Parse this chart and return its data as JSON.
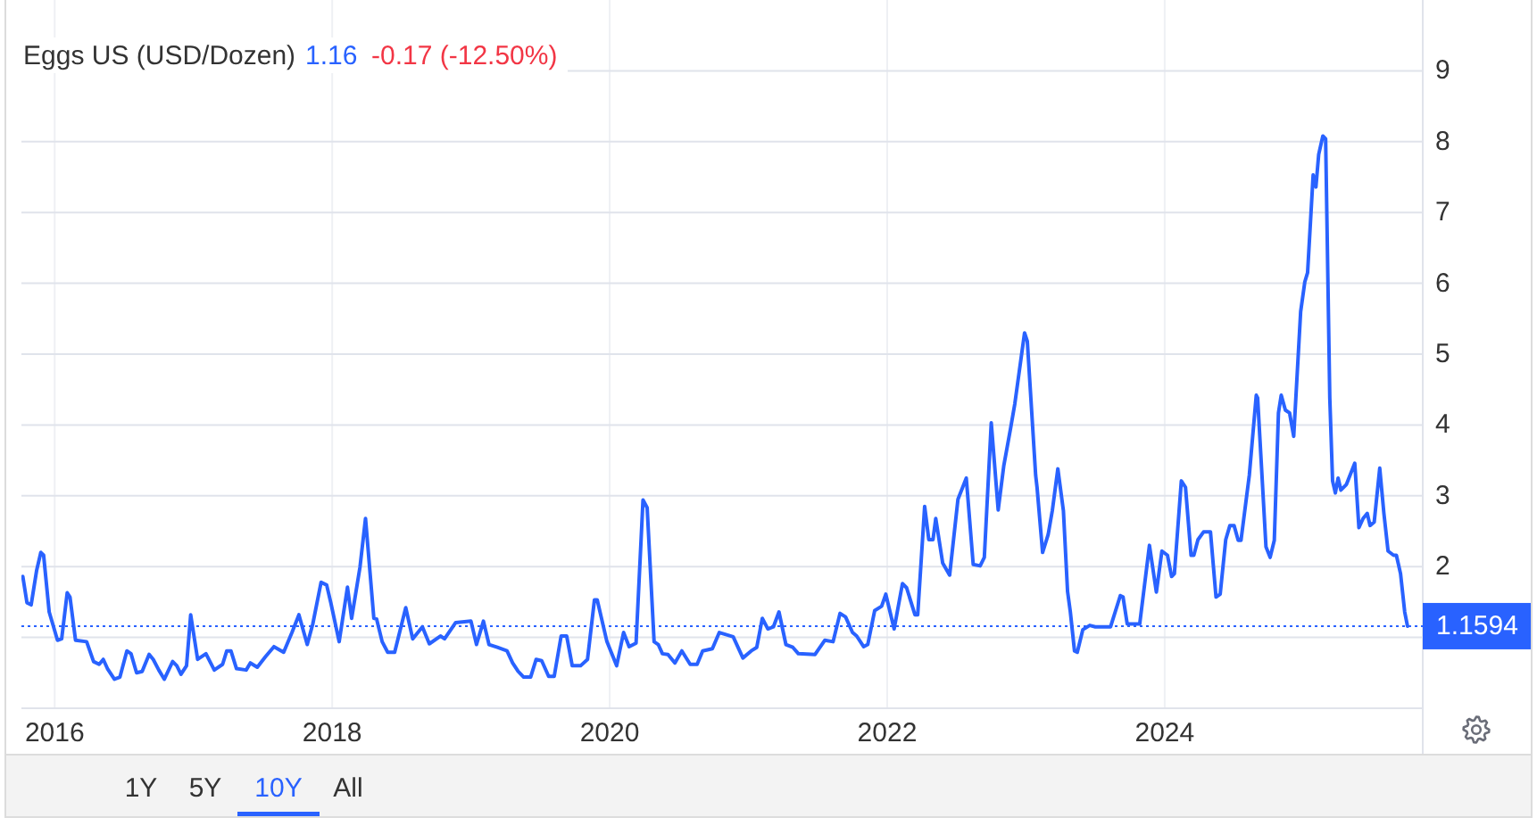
{
  "chart_data": {
    "type": "line",
    "title": "Eggs US (USD/Dozen)",
    "annotations": [
      "1.16",
      "-0.17 (-12.50%)",
      "1Y",
      "5Y",
      "10Y",
      "All"
    ],
    "x": [
      2015.77,
      2015.8,
      2015.83,
      2015.87,
      2015.9,
      2015.92,
      2015.96,
      2016.02,
      2016.05,
      2016.09,
      2016.11,
      2016.15,
      2016.23,
      2016.28,
      2016.32,
      2016.35,
      2016.38,
      2016.43,
      2016.47,
      2016.52,
      2016.55,
      2016.59,
      2016.63,
      2016.68,
      2016.71,
      2016.75,
      2016.79,
      2016.85,
      2016.88,
      2016.91,
      2016.95,
      2016.98,
      2017.03,
      2017.09,
      2017.15,
      2017.21,
      2017.24,
      2017.27,
      2017.31,
      2017.38,
      2017.41,
      2017.46,
      2017.52,
      2017.58,
      2017.65,
      2017.71,
      2017.76,
      2017.82,
      2017.86,
      2017.92,
      2017.96,
      2017.99,
      2018.05,
      2018.11,
      2018.14,
      2018.2,
      2018.24,
      2018.3,
      2018.32,
      2018.36,
      2018.4,
      2018.45,
      2018.53,
      2018.58,
      2018.65,
      2018.7,
      2018.78,
      2018.81,
      2018.89,
      2019.0,
      2019.04,
      2019.09,
      2019.13,
      2019.19,
      2019.26,
      2019.3,
      2019.34,
      2019.38,
      2019.43,
      2019.47,
      2019.51,
      2019.56,
      2019.6,
      2019.65,
      2019.69,
      2019.73,
      2019.79,
      2019.84,
      2019.89,
      2019.91,
      2019.98,
      2020.05,
      2020.1,
      2020.14,
      2020.19,
      2020.24,
      2020.27,
      2020.32,
      2020.35,
      2020.38,
      2020.42,
      2020.47,
      2020.52,
      2020.58,
      2020.63,
      2020.67,
      2020.74,
      2020.79,
      2020.89,
      2020.96,
      2021.02,
      2021.06,
      2021.1,
      2021.14,
      2021.18,
      2021.22,
      2021.27,
      2021.32,
      2021.36,
      2021.48,
      2021.55,
      2021.61,
      2021.66,
      2021.7,
      2021.75,
      2021.78,
      2021.83,
      2021.86,
      2021.91,
      2021.96,
      2021.99,
      2022.05,
      2022.11,
      2022.14,
      2022.2,
      2022.22,
      2022.27,
      2022.3,
      2022.33,
      2022.35,
      2022.4,
      2022.45,
      2022.51,
      2022.57,
      2022.62,
      2022.67,
      2022.7,
      2022.75,
      2022.8,
      2022.84,
      2022.89,
      2022.92,
      2022.99,
      2023.01,
      2023.07,
      2023.08,
      2023.12,
      2023.16,
      2023.19,
      2023.23,
      2023.27,
      2023.3,
      2023.32,
      2023.35,
      2023.37,
      2023.41,
      2023.46,
      2023.5,
      2023.61,
      2023.68,
      2023.7,
      2023.73,
      2023.82,
      2023.89,
      2023.94,
      2023.98,
      2024.02,
      2024.05,
      2024.07,
      2024.12,
      2024.15,
      2024.19,
      2024.21,
      2024.24,
      2024.28,
      2024.33,
      2024.37,
      2024.4,
      2024.44,
      2024.47,
      2024.5,
      2024.53,
      2024.55,
      2024.61,
      2024.66,
      2024.67,
      2024.73,
      2024.76,
      2024.79,
      2024.82,
      2024.84,
      2024.87,
      2024.9,
      2024.93,
      2024.98,
      2025.01,
      2025.03,
      2025.07,
      2025.09,
      2025.11,
      2025.14,
      2025.16,
      2025.19,
      2025.21,
      2025.23,
      2025.25,
      2025.27,
      2025.31,
      2025.37,
      2025.4,
      2025.43,
      2025.46,
      2025.48,
      2025.51,
      2025.55,
      2025.58,
      2025.61,
      2025.65,
      2025.67,
      2025.7,
      2025.73,
      2025.75
    ],
    "series": [
      {
        "color": "#2962ff",
        "values": [
          1.86,
          1.49,
          1.46,
          1.95,
          2.2,
          2.16,
          1.36,
          0.96,
          0.98,
          1.63,
          1.57,
          0.96,
          0.94,
          0.66,
          0.62,
          0.69,
          0.56,
          0.41,
          0.44,
          0.81,
          0.77,
          0.5,
          0.52,
          0.76,
          0.69,
          0.54,
          0.41,
          0.66,
          0.6,
          0.48,
          0.6,
          1.32,
          0.69,
          0.77,
          0.54,
          0.62,
          0.81,
          0.81,
          0.56,
          0.54,
          0.64,
          0.58,
          0.73,
          0.87,
          0.79,
          1.07,
          1.32,
          0.9,
          1.19,
          1.78,
          1.74,
          1.49,
          0.94,
          1.71,
          1.27,
          1.99,
          2.68,
          1.27,
          1.26,
          0.94,
          0.79,
          0.79,
          1.42,
          0.98,
          1.15,
          0.91,
          1.02,
          0.98,
          1.21,
          1.23,
          0.9,
          1.23,
          0.9,
          0.86,
          0.81,
          0.64,
          0.52,
          0.44,
          0.44,
          0.69,
          0.67,
          0.45,
          0.45,
          1.02,
          1.02,
          0.6,
          0.6,
          0.69,
          1.53,
          1.53,
          0.94,
          0.6,
          1.07,
          0.87,
          0.92,
          2.94,
          2.83,
          0.94,
          0.9,
          0.77,
          0.76,
          0.64,
          0.81,
          0.62,
          0.62,
          0.81,
          0.84,
          1.07,
          1.01,
          0.71,
          0.81,
          0.86,
          1.27,
          1.12,
          1.15,
          1.36,
          0.9,
          0.86,
          0.77,
          0.76,
          0.96,
          0.94,
          1.34,
          1.29,
          1.07,
          1.02,
          0.87,
          0.9,
          1.38,
          1.44,
          1.61,
          1.12,
          1.76,
          1.7,
          1.32,
          1.32,
          2.85,
          2.38,
          2.38,
          2.68,
          2.05,
          1.88,
          2.95,
          3.25,
          2.03,
          2.01,
          2.13,
          4.03,
          2.8,
          3.42,
          3.96,
          4.3,
          5.3,
          5.18,
          3.29,
          3.12,
          2.2,
          2.45,
          2.79,
          3.38,
          2.79,
          1.65,
          1.36,
          0.81,
          0.79,
          1.11,
          1.17,
          1.15,
          1.15,
          1.59,
          1.57,
          1.19,
          1.19,
          2.3,
          1.64,
          2.22,
          2.16,
          1.86,
          1.9,
          3.21,
          3.12,
          2.16,
          2.16,
          2.38,
          2.49,
          2.49,
          1.57,
          1.61,
          2.38,
          2.58,
          2.58,
          2.37,
          2.37,
          3.29,
          4.42,
          4.38,
          2.28,
          2.13,
          2.37,
          4.17,
          4.42,
          4.21,
          4.17,
          3.84,
          5.6,
          6.02,
          6.15,
          7.53,
          7.36,
          7.82,
          8.08,
          8.04,
          4.38,
          3.21,
          3.04,
          3.25,
          3.08,
          3.16,
          3.46,
          2.55,
          2.68,
          2.75,
          2.58,
          2.63,
          3.39,
          2.75,
          2.22,
          2.16,
          2.16,
          1.9,
          1.36,
          1.1594
        ]
      }
    ],
    "xlim": [
      2015.76,
      2025.86
    ],
    "xticks": [
      2016,
      2018,
      2020,
      2022,
      2024
    ],
    "ylim": [
      0,
      10
    ],
    "yticks": [
      {
        "value": 1,
        "label": null
      },
      2,
      3,
      4,
      5,
      6,
      7,
      8,
      9
    ],
    "grid": true,
    "ref_lines": [
      {
        "axis": "y",
        "value": 1.1594,
        "label": "1.1594",
        "color": "#2962ff",
        "line_style": "dotted"
      }
    ]
  }
}
